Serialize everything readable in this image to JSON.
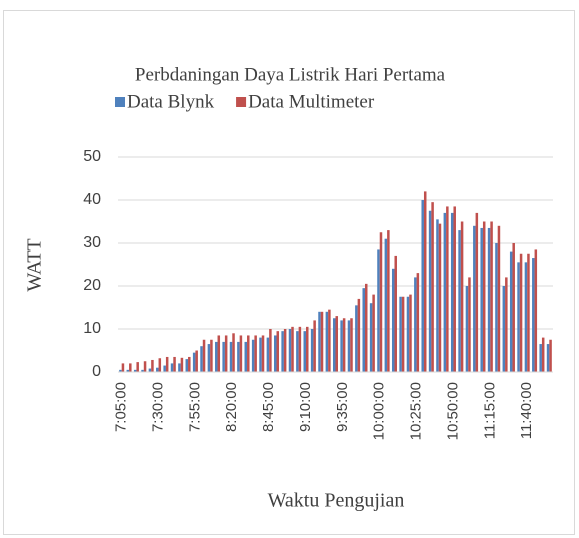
{
  "chart_data": {
    "type": "bar",
    "title": "Perbdaningan Daya Listrik Hari Pertama",
    "x_label": "Waktu Pengujian",
    "y_label": "WATT",
    "categories": [
      "7:05:00",
      null,
      null,
      null,
      null,
      "7:30:00",
      null,
      null,
      null,
      null,
      "7:55:00",
      null,
      null,
      null,
      null,
      "8:20:00",
      null,
      null,
      null,
      null,
      "8:45:00",
      null,
      null,
      null,
      null,
      "9:10:00",
      null,
      null,
      null,
      null,
      "9:35:00",
      null,
      null,
      null,
      null,
      "10:00:00",
      null,
      null,
      null,
      null,
      "10:25:00",
      null,
      null,
      null,
      null,
      "10:50:00",
      null,
      null,
      null,
      null,
      "11:15:00",
      null,
      null,
      null,
      null,
      "11:40:00",
      null,
      null,
      null
    ],
    "series": [
      {
        "name": "Data Blynk",
        "color": "#4f81bd",
        "values": [
          0.5,
          0.5,
          0.5,
          0.5,
          0.8,
          1,
          1.5,
          2,
          2,
          3,
          4.5,
          6,
          6.5,
          7,
          7,
          7,
          7,
          7,
          7.5,
          8,
          8,
          8.5,
          9.5,
          10,
          9.5,
          9.5,
          10,
          14,
          14,
          12.5,
          12,
          12,
          15.5,
          19.5,
          16,
          28.5,
          31,
          24,
          17.5,
          17.5,
          22,
          40,
          37.5,
          35.5,
          37,
          37,
          33,
          20,
          34,
          33.5,
          33.5,
          30,
          20,
          28,
          25.5,
          25.5,
          26.5,
          6.5,
          6.5
        ]
      },
      {
        "name": "Data Multimeter",
        "color": "#c0504d",
        "values": [
          2,
          2,
          2.3,
          2.5,
          2.8,
          3.2,
          3.5,
          3.5,
          3.3,
          3.5,
          5,
          7.5,
          7.5,
          8.5,
          8.5,
          9,
          8.5,
          8.5,
          8.5,
          8.5,
          10,
          9.5,
          10,
          10.5,
          10.5,
          10.5,
          12,
          14,
          14.5,
          13,
          12.5,
          12.5,
          17,
          20.5,
          18,
          32.5,
          33,
          27,
          17.5,
          18,
          23,
          42,
          39.5,
          34.5,
          38.5,
          38.5,
          35,
          22,
          37,
          35,
          35,
          34,
          22,
          30,
          27.5,
          27.5,
          28.5,
          8,
          7.5
        ]
      }
    ],
    "ylim": [
      0,
      50
    ],
    "yticks": [
      0,
      10,
      20,
      30,
      40,
      50
    ],
    "grid": true,
    "legend": "top"
  }
}
